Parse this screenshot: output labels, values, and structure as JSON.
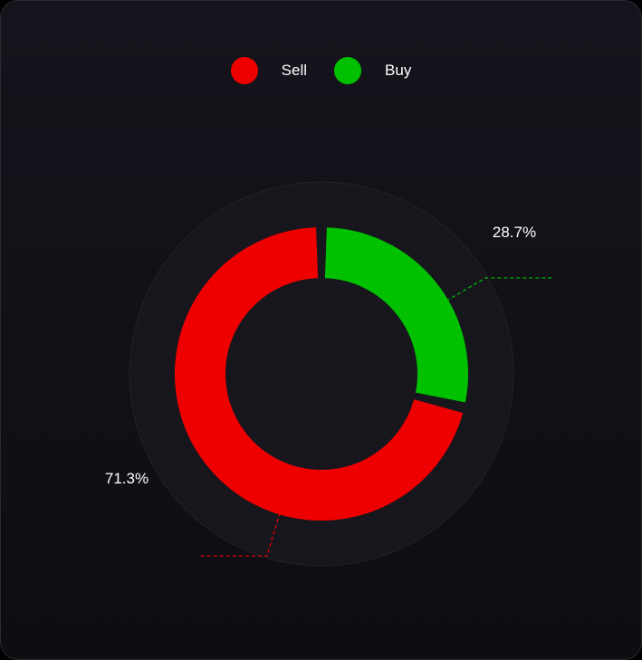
{
  "chart_data": {
    "type": "pie",
    "style": "donut",
    "title": "",
    "categories": [
      "Sell",
      "Buy"
    ],
    "values": [
      71.3,
      28.7
    ],
    "data_labels": [
      "71.3%",
      "28.7%"
    ],
    "colors": [
      "#ef0000",
      "#00c000"
    ],
    "legend": {
      "position": "top-center",
      "entries": [
        {
          "label": "Sell",
          "color": "#ef0000"
        },
        {
          "label": "Buy",
          "color": "#00c000"
        }
      ]
    }
  }
}
